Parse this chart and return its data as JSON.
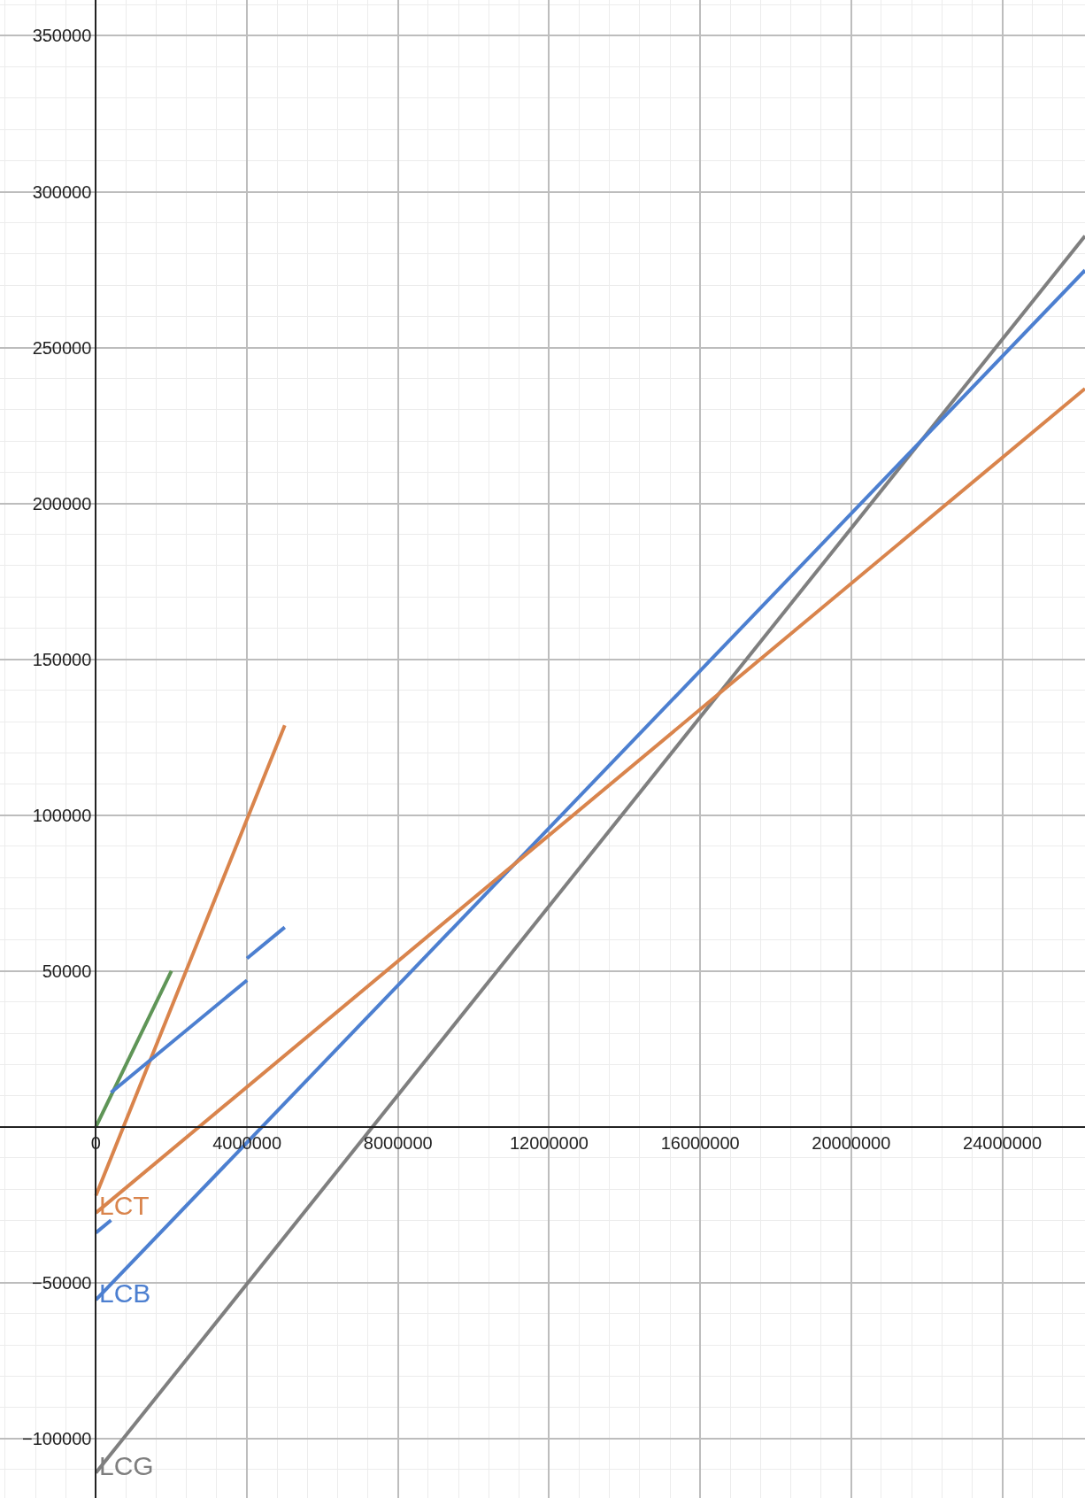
{
  "chart_data": {
    "type": "line",
    "xlim": [
      -2540000,
      26190000
    ],
    "ylim": [
      -119100,
      361500
    ],
    "xticks": [
      {
        "value": 0,
        "label": "0"
      },
      4000000,
      8000000,
      12000000,
      16000000,
      20000000,
      24000000
    ],
    "yticks": [
      {
        "value": -100000,
        "label": "−100000"
      },
      {
        "value": -50000,
        "label": "−50000"
      },
      {
        "value": 0,
        "label": null
      },
      50000,
      100000,
      150000,
      200000,
      250000,
      300000,
      350000
    ],
    "grid": true,
    "legend": false,
    "line_style": "solid",
    "series": [
      {
        "name": "LCG",
        "color": "#7f7f7f",
        "x": [
          0,
          26190000
        ],
        "values": [
          -111000,
          285800
        ]
      },
      {
        "name": "LCB",
        "color": "#4c7fd0",
        "x": [
          0,
          26190000
        ],
        "values": [
          -55500,
          274800
        ]
      },
      {
        "name": "LCT",
        "color": "#d9844c",
        "x": [
          0,
          26190000
        ],
        "values": [
          -27600,
          236800
        ]
      },
      {
        "color": "#d9844c",
        "x": [
          0,
          5000000
        ],
        "values": [
          -22000,
          128800
        ]
      },
      {
        "color": "#5f9557",
        "x": [
          0,
          2000000
        ],
        "values": [
          0,
          50000
        ]
      },
      {
        "color": "#4c7fd0",
        "x": [
          0,
          400000
        ],
        "values": [
          -34000,
          -30000
        ]
      },
      {
        "color": "#4c7fd0",
        "x": [
          400000,
          4000000
        ],
        "values": [
          11000,
          47000
        ]
      },
      {
        "color": "#4c7fd0",
        "x": [
          4000000,
          5000000
        ],
        "values": [
          54000,
          64000
        ]
      }
    ]
  }
}
